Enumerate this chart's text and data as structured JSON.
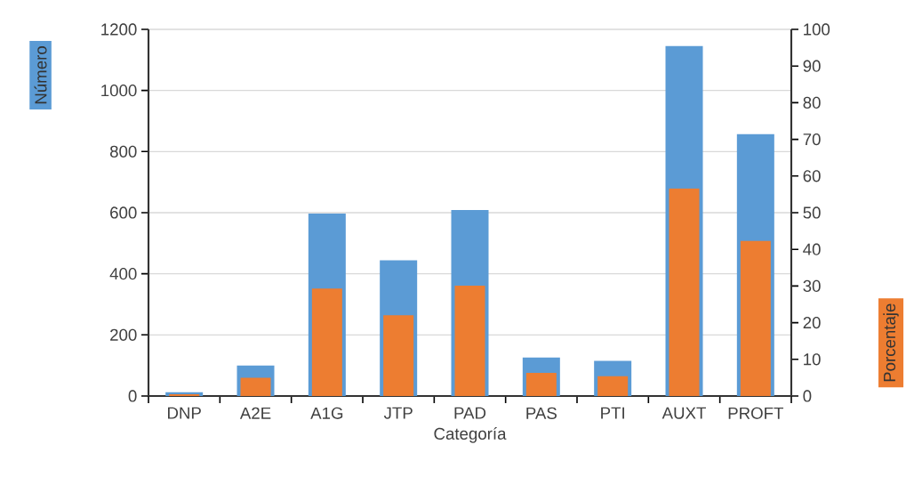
{
  "chart_data": {
    "type": "bar",
    "xlabel": "Categoría",
    "ylabel": "Número",
    "y2label": "Porcentaje",
    "categories": [
      "DNP",
      "A2E",
      "A1G",
      "JTP",
      "PAD",
      "PAS",
      "PTI",
      "AUXT",
      "PROFT"
    ],
    "series": [
      {
        "color": "#5b9bd5",
        "values": [
          12,
          100,
          597,
          444,
          609,
          126,
          115,
          1145,
          857
        ]
      },
      {
        "color": "#ed7d31",
        "axis": "y2",
        "values": [
          0.5,
          5,
          29.3,
          22,
          30.1,
          6.3,
          5.4,
          56.6,
          42.3
        ]
      }
    ],
    "ylim": [
      0,
      1200
    ],
    "yticks": [
      0,
      200,
      400,
      600,
      800,
      1000,
      1200
    ],
    "y2lim": [
      0,
      100
    ],
    "y2ticks": [
      0,
      10,
      20,
      30,
      40,
      50,
      60,
      70,
      80,
      90,
      100
    ],
    "grid": "y"
  }
}
